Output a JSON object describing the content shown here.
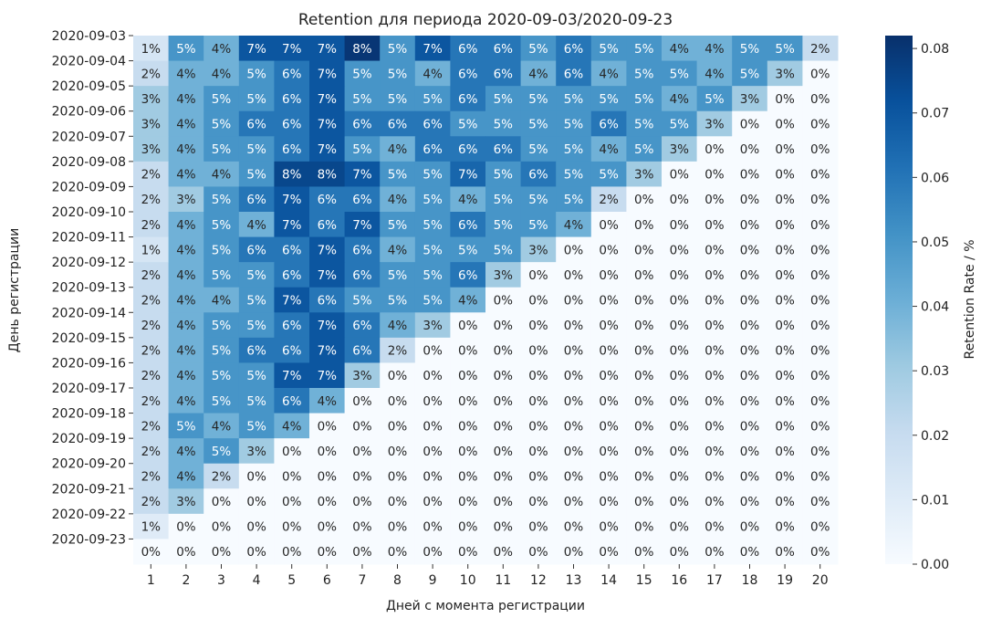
{
  "chart_data": {
    "type": "heatmap",
    "title": "Retention для периода 2020-09-03/2020-09-23",
    "xlabel": "Дней с момента регистрации",
    "ylabel": "День регистрации",
    "x": [
      "1",
      "2",
      "3",
      "4",
      "5",
      "6",
      "7",
      "8",
      "9",
      "10",
      "11",
      "12",
      "13",
      "14",
      "15",
      "16",
      "17",
      "18",
      "19",
      "20"
    ],
    "y": [
      "2020-09-03",
      "2020-09-04",
      "2020-09-05",
      "2020-09-06",
      "2020-09-07",
      "2020-09-08",
      "2020-09-09",
      "2020-09-10",
      "2020-09-11",
      "2020-09-12",
      "2020-09-13",
      "2020-09-14",
      "2020-09-15",
      "2020-09-16",
      "2020-09-17",
      "2020-09-18",
      "2020-09-19",
      "2020-09-20",
      "2020-09-21",
      "2020-09-22",
      "2020-09-23"
    ],
    "values": [
      [
        0.014,
        0.05,
        0.04,
        0.07,
        0.07,
        0.07,
        0.08,
        0.05,
        0.07,
        0.06,
        0.06,
        0.05,
        0.06,
        0.05,
        0.05,
        0.04,
        0.04,
        0.05,
        0.05,
        0.02
      ],
      [
        0.02,
        0.04,
        0.04,
        0.05,
        0.06,
        0.07,
        0.05,
        0.05,
        0.04,
        0.06,
        0.06,
        0.04,
        0.06,
        0.04,
        0.05,
        0.05,
        0.04,
        0.05,
        0.03,
        0
      ],
      [
        0.03,
        0.04,
        0.05,
        0.05,
        0.06,
        0.07,
        0.05,
        0.05,
        0.05,
        0.06,
        0.05,
        0.05,
        0.05,
        0.05,
        0.05,
        0.04,
        0.05,
        0.03,
        0,
        0
      ],
      [
        0.03,
        0.04,
        0.05,
        0.06,
        0.06,
        0.07,
        0.06,
        0.06,
        0.06,
        0.05,
        0.05,
        0.05,
        0.05,
        0.06,
        0.05,
        0.05,
        0.03,
        0,
        0,
        0
      ],
      [
        0.03,
        0.04,
        0.05,
        0.05,
        0.06,
        0.07,
        0.05,
        0.04,
        0.06,
        0.06,
        0.06,
        0.05,
        0.05,
        0.04,
        0.05,
        0.03,
        0,
        0,
        0,
        0
      ],
      [
        0.02,
        0.04,
        0.04,
        0.05,
        0.075,
        0.075,
        0.07,
        0.05,
        0.05,
        0.065,
        0.05,
        0.06,
        0.05,
        0.05,
        0.03,
        0,
        0,
        0,
        0,
        0
      ],
      [
        0.02,
        0.03,
        0.05,
        0.06,
        0.07,
        0.06,
        0.06,
        0.04,
        0.05,
        0.04,
        0.05,
        0.05,
        0.05,
        0.02,
        0,
        0,
        0,
        0,
        0,
        0
      ],
      [
        0.02,
        0.04,
        0.05,
        0.04,
        0.07,
        0.06,
        0.07,
        0.05,
        0.05,
        0.06,
        0.05,
        0.05,
        0.04,
        0,
        0,
        0,
        0,
        0,
        0,
        0
      ],
      [
        0.014,
        0.04,
        0.05,
        0.06,
        0.06,
        0.07,
        0.06,
        0.04,
        0.05,
        0.05,
        0.05,
        0.03,
        0,
        0,
        0,
        0,
        0,
        0,
        0,
        0
      ],
      [
        0.02,
        0.04,
        0.05,
        0.05,
        0.06,
        0.07,
        0.06,
        0.05,
        0.05,
        0.06,
        0.03,
        0,
        0,
        0,
        0,
        0,
        0,
        0,
        0,
        0
      ],
      [
        0.02,
        0.04,
        0.04,
        0.05,
        0.07,
        0.06,
        0.05,
        0.05,
        0.05,
        0.04,
        0,
        0,
        0,
        0,
        0,
        0,
        0,
        0,
        0,
        0
      ],
      [
        0.02,
        0.04,
        0.05,
        0.05,
        0.06,
        0.07,
        0.06,
        0.04,
        0.03,
        0,
        0,
        0,
        0,
        0,
        0,
        0,
        0,
        0,
        0,
        0
      ],
      [
        0.02,
        0.04,
        0.05,
        0.06,
        0.06,
        0.07,
        0.06,
        0.02,
        0,
        0,
        0,
        0,
        0,
        0,
        0,
        0,
        0,
        0,
        0,
        0
      ],
      [
        0.02,
        0.04,
        0.05,
        0.05,
        0.07,
        0.07,
        0.03,
        0,
        0,
        0,
        0,
        0,
        0,
        0,
        0,
        0,
        0,
        0,
        0,
        0
      ],
      [
        0.02,
        0.04,
        0.05,
        0.05,
        0.06,
        0.04,
        0,
        0,
        0,
        0,
        0,
        0,
        0,
        0,
        0,
        0,
        0,
        0,
        0,
        0
      ],
      [
        0.02,
        0.05,
        0.04,
        0.05,
        0.04,
        0,
        0,
        0,
        0,
        0,
        0,
        0,
        0,
        0,
        0,
        0,
        0,
        0,
        0,
        0
      ],
      [
        0.02,
        0.04,
        0.05,
        0.03,
        0,
        0,
        0,
        0,
        0,
        0,
        0,
        0,
        0,
        0,
        0,
        0,
        0,
        0,
        0,
        0
      ],
      [
        0.02,
        0.04,
        0.02,
        0,
        0,
        0,
        0,
        0,
        0,
        0,
        0,
        0,
        0,
        0,
        0,
        0,
        0,
        0,
        0,
        0
      ],
      [
        0.02,
        0.03,
        0,
        0,
        0,
        0,
        0,
        0,
        0,
        0,
        0,
        0,
        0,
        0,
        0,
        0,
        0,
        0,
        0,
        0
      ],
      [
        0.01,
        0,
        0,
        0,
        0,
        0,
        0,
        0,
        0,
        0,
        0,
        0,
        0,
        0,
        0,
        0,
        0,
        0,
        0,
        0
      ],
      [
        0,
        0,
        0,
        0,
        0,
        0,
        0,
        0,
        0,
        0,
        0,
        0,
        0,
        0,
        0,
        0,
        0,
        0,
        0,
        0
      ]
    ],
    "cell_labels": [
      [
        "1%",
        "5%",
        "4%",
        "7%",
        "7%",
        "7%",
        "8%",
        "5%",
        "7%",
        "6%",
        "6%",
        "5%",
        "6%",
        "5%",
        "5%",
        "4%",
        "4%",
        "5%",
        "5%",
        "2%"
      ],
      [
        "2%",
        "4%",
        "4%",
        "5%",
        "6%",
        "7%",
        "5%",
        "5%",
        "4%",
        "6%",
        "6%",
        "4%",
        "6%",
        "4%",
        "5%",
        "5%",
        "4%",
        "5%",
        "3%",
        "0%"
      ],
      [
        "3%",
        "4%",
        "5%",
        "5%",
        "6%",
        "7%",
        "5%",
        "5%",
        "5%",
        "6%",
        "5%",
        "5%",
        "5%",
        "5%",
        "5%",
        "4%",
        "5%",
        "3%",
        "0%",
        "0%"
      ],
      [
        "3%",
        "4%",
        "5%",
        "6%",
        "6%",
        "7%",
        "6%",
        "6%",
        "6%",
        "5%",
        "5%",
        "5%",
        "5%",
        "6%",
        "5%",
        "5%",
        "3%",
        "0%",
        "0%",
        "0%"
      ],
      [
        "3%",
        "4%",
        "5%",
        "5%",
        "6%",
        "7%",
        "5%",
        "4%",
        "6%",
        "6%",
        "6%",
        "5%",
        "5%",
        "4%",
        "5%",
        "3%",
        "0%",
        "0%",
        "0%",
        "0%"
      ],
      [
        "2%",
        "4%",
        "4%",
        "5%",
        "8%",
        "8%",
        "7%",
        "5%",
        "5%",
        "7%",
        "5%",
        "6%",
        "5%",
        "5%",
        "3%",
        "0%",
        "0%",
        "0%",
        "0%",
        "0%"
      ],
      [
        "2%",
        "3%",
        "5%",
        "6%",
        "7%",
        "6%",
        "6%",
        "4%",
        "5%",
        "4%",
        "5%",
        "5%",
        "5%",
        "2%",
        "0%",
        "0%",
        "0%",
        "0%",
        "0%",
        "0%"
      ],
      [
        "2%",
        "4%",
        "5%",
        "4%",
        "7%",
        "6%",
        "7%",
        "5%",
        "5%",
        "6%",
        "5%",
        "5%",
        "4%",
        "0%",
        "0%",
        "0%",
        "0%",
        "0%",
        "0%",
        "0%"
      ],
      [
        "1%",
        "4%",
        "5%",
        "6%",
        "6%",
        "7%",
        "6%",
        "4%",
        "5%",
        "5%",
        "5%",
        "3%",
        "0%",
        "0%",
        "0%",
        "0%",
        "0%",
        "0%",
        "0%",
        "0%"
      ],
      [
        "2%",
        "4%",
        "5%",
        "5%",
        "6%",
        "7%",
        "6%",
        "5%",
        "5%",
        "6%",
        "3%",
        "0%",
        "0%",
        "0%",
        "0%",
        "0%",
        "0%",
        "0%",
        "0%",
        "0%"
      ],
      [
        "2%",
        "4%",
        "4%",
        "5%",
        "7%",
        "6%",
        "5%",
        "5%",
        "5%",
        "4%",
        "0%",
        "0%",
        "0%",
        "0%",
        "0%",
        "0%",
        "0%",
        "0%",
        "0%",
        "0%"
      ],
      [
        "2%",
        "4%",
        "5%",
        "5%",
        "6%",
        "7%",
        "6%",
        "4%",
        "3%",
        "0%",
        "0%",
        "0%",
        "0%",
        "0%",
        "0%",
        "0%",
        "0%",
        "0%",
        "0%",
        "0%"
      ],
      [
        "2%",
        "4%",
        "5%",
        "6%",
        "6%",
        "7%",
        "6%",
        "2%",
        "0%",
        "0%",
        "0%",
        "0%",
        "0%",
        "0%",
        "0%",
        "0%",
        "0%",
        "0%",
        "0%",
        "0%"
      ],
      [
        "2%",
        "4%",
        "5%",
        "5%",
        "7%",
        "7%",
        "3%",
        "0%",
        "0%",
        "0%",
        "0%",
        "0%",
        "0%",
        "0%",
        "0%",
        "0%",
        "0%",
        "0%",
        "0%",
        "0%"
      ],
      [
        "2%",
        "4%",
        "5%",
        "5%",
        "6%",
        "4%",
        "0%",
        "0%",
        "0%",
        "0%",
        "0%",
        "0%",
        "0%",
        "0%",
        "0%",
        "0%",
        "0%",
        "0%",
        "0%",
        "0%"
      ],
      [
        "2%",
        "5%",
        "4%",
        "5%",
        "4%",
        "0%",
        "0%",
        "0%",
        "0%",
        "0%",
        "0%",
        "0%",
        "0%",
        "0%",
        "0%",
        "0%",
        "0%",
        "0%",
        "0%",
        "0%"
      ],
      [
        "2%",
        "4%",
        "5%",
        "3%",
        "0%",
        "0%",
        "0%",
        "0%",
        "0%",
        "0%",
        "0%",
        "0%",
        "0%",
        "0%",
        "0%",
        "0%",
        "0%",
        "0%",
        "0%",
        "0%"
      ],
      [
        "2%",
        "4%",
        "2%",
        "0%",
        "0%",
        "0%",
        "0%",
        "0%",
        "0%",
        "0%",
        "0%",
        "0%",
        "0%",
        "0%",
        "0%",
        "0%",
        "0%",
        "0%",
        "0%",
        "0%"
      ],
      [
        "2%",
        "3%",
        "0%",
        "0%",
        "0%",
        "0%",
        "0%",
        "0%",
        "0%",
        "0%",
        "0%",
        "0%",
        "0%",
        "0%",
        "0%",
        "0%",
        "0%",
        "0%",
        "0%",
        "0%"
      ],
      [
        "1%",
        "0%",
        "0%",
        "0%",
        "0%",
        "0%",
        "0%",
        "0%",
        "0%",
        "0%",
        "0%",
        "0%",
        "0%",
        "0%",
        "0%",
        "0%",
        "0%",
        "0%",
        "0%",
        "0%"
      ],
      [
        "0%",
        "0%",
        "0%",
        "0%",
        "0%",
        "0%",
        "0%",
        "0%",
        "0%",
        "0%",
        "0%",
        "0%",
        "0%",
        "0%",
        "0%",
        "0%",
        "0%",
        "0%",
        "0%",
        "0%"
      ]
    ],
    "colorbar": {
      "label": "Retention Rate / %",
      "range": [
        0,
        0.082
      ],
      "ticks": [
        "0.00",
        "0.01",
        "0.02",
        "0.03",
        "0.04",
        "0.05",
        "0.06",
        "0.07",
        "0.08"
      ],
      "tick_values": [
        0,
        0.01,
        0.02,
        0.03,
        0.04,
        0.05,
        0.06,
        0.07,
        0.08
      ]
    },
    "colormap": "Blues",
    "colormap_stops": [
      "#f7fbff",
      "#deebf7",
      "#c6dbef",
      "#9ecae1",
      "#6baed6",
      "#4292c6",
      "#2171b5",
      "#08519c",
      "#08306b"
    ],
    "text_color_dark": "#262626",
    "text_color_light": "#ffffff"
  }
}
